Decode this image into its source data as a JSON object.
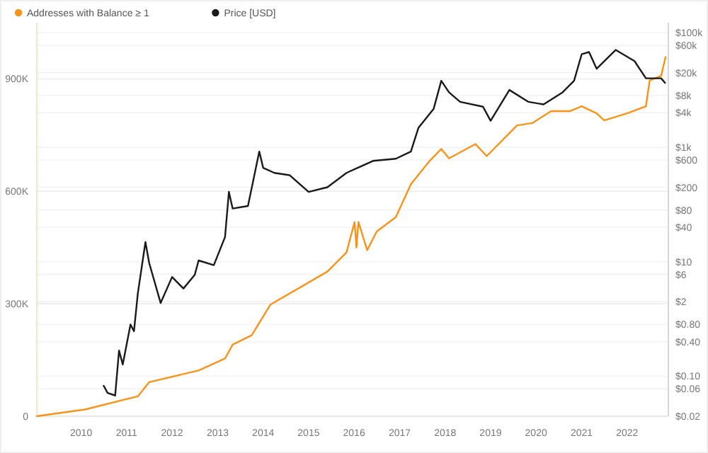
{
  "chart_data": {
    "type": "line",
    "legend": "top left",
    "grid": "y",
    "log": "y2",
    "xlim": [
      "2009-01-10",
      "2022-11-28"
    ],
    "xticks": [
      {
        "value": "2010-01-01",
        "label": "2010"
      },
      {
        "value": "2011-01-01",
        "label": "2011"
      },
      {
        "value": "2012-01-01",
        "label": "2012"
      },
      {
        "value": "2013-01-01",
        "label": "2013"
      },
      {
        "value": "2014-01-01",
        "label": "2014"
      },
      {
        "value": "2015-01-01",
        "label": "2015"
      },
      {
        "value": "2016-01-01",
        "label": "2016"
      },
      {
        "value": "2017-01-01",
        "label": "2017"
      },
      {
        "value": "2018-01-01",
        "label": "2018"
      },
      {
        "value": "2019-01-01",
        "label": "2019"
      },
      {
        "value": "2020-01-01",
        "label": "2020"
      },
      {
        "value": "2021-01-01",
        "label": "2021"
      },
      {
        "value": "2022-01-01",
        "label": "2022"
      }
    ],
    "ylim": [
      0,
      1050000
    ],
    "yticks": [
      0,
      {
        "value": 300000,
        "label": "300K"
      },
      {
        "value": 600000,
        "label": "600K"
      },
      {
        "value": 900000,
        "label": "900K"
      }
    ],
    "y2lim": [
      0.02,
      150000
    ],
    "y2ticks": [
      {
        "value": 0.02,
        "label": "$0.02"
      },
      {
        "value": 0.06,
        "label": "$0.06"
      },
      {
        "value": 0.1,
        "label": "$0.10"
      },
      {
        "value": 0.4,
        "label": "$0.40"
      },
      {
        "value": 0.8,
        "label": "$0.80"
      },
      {
        "value": 2,
        "label": "$2"
      },
      {
        "value": 6,
        "label": "$6"
      },
      {
        "value": 10,
        "label": "$10"
      },
      {
        "value": 40,
        "label": "$40"
      },
      {
        "value": 80,
        "label": "$80"
      },
      {
        "value": 200,
        "label": "$200"
      },
      {
        "value": 600,
        "label": "$600"
      },
      {
        "value": 1000,
        "label": "$1k"
      },
      {
        "value": 4000,
        "label": "$4k"
      },
      {
        "value": 8000,
        "label": "$8k"
      },
      {
        "value": 20000,
        "label": "$20k"
      },
      {
        "value": 60000,
        "label": "$60k"
      },
      {
        "value": 100000,
        "label": "$100k"
      }
    ],
    "series": [
      {
        "name": "Addresses with Balance ≥ 1",
        "color": "#f7931a",
        "x": [
          "2009-01-10",
          "2010-02",
          "2011-04",
          "2011-07",
          "2012-08",
          "2013-03",
          "2013-05",
          "2013-10",
          "2014-03",
          "2015-06",
          "2015-11",
          "2016-01-05",
          "2016-01-20",
          "2016-02-05",
          "2016-04-15",
          "2016-07",
          "2016-12",
          "2017-04",
          "2017-09",
          "2017-12",
          "2018-02",
          "2018-09",
          "2018-12",
          "2019-08",
          "2019-12",
          "2020-05",
          "2020-10",
          "2021-01",
          "2021-05",
          "2021-07",
          "2022-01",
          "2022-06",
          "2022-07",
          "2022-10",
          "2022-11-05"
        ],
        "values": [
          0,
          18000,
          53000,
          91000,
          122000,
          154000,
          191000,
          216000,
          298000,
          386000,
          437000,
          518000,
          450000,
          518000,
          443000,
          493000,
          531000,
          619000,
          682000,
          713000,
          688000,
          726000,
          694000,
          776000,
          782000,
          814000,
          814000,
          827000,
          808000,
          789000,
          808000,
          827000,
          896000,
          908000,
          958000
        ]
      },
      {
        "name": "Price [USD]",
        "color": "#1a1a1a",
        "axis": "y2",
        "x": [
          "2010-07",
          "2010-08",
          "2010-10",
          "2010-11",
          "2010-12",
          "2011-02",
          "2011-03",
          "2011-04",
          "2011-06",
          "2011-07",
          "2011-10",
          "2012-01",
          "2012-04",
          "2012-07",
          "2012-08",
          "2012-12",
          "2013-03",
          "2013-04",
          "2013-05",
          "2013-09",
          "2013-12",
          "2014-01",
          "2014-04",
          "2014-08",
          "2015-01",
          "2015-06",
          "2015-11",
          "2016-06",
          "2016-12",
          "2017-04",
          "2017-06",
          "2017-10",
          "2017-12",
          "2018-02",
          "2018-05",
          "2018-11",
          "2019-01",
          "2019-06",
          "2019-11",
          "2020-03",
          "2020-08",
          "2020-11",
          "2021-01",
          "2021-03",
          "2021-05",
          "2021-10",
          "2022-03",
          "2022-06",
          "2022-10",
          "2022-11"
        ],
        "values": [
          0.068,
          0.051,
          0.046,
          0.28,
          0.16,
          0.8,
          0.61,
          2.8,
          22,
          9.5,
          1.9,
          5.4,
          3.4,
          5.9,
          10.5,
          8.7,
          27,
          166,
          85,
          94,
          840,
          437,
          356,
          325,
          166,
          200,
          356,
          577,
          630,
          840,
          2190,
          4700,
          14500,
          9100,
          6200,
          5100,
          2900,
          10000,
          6200,
          5600,
          9100,
          14500,
          42000,
          46000,
          23500,
          50000,
          32000,
          16000,
          16000,
          13300
        ]
      }
    ]
  }
}
